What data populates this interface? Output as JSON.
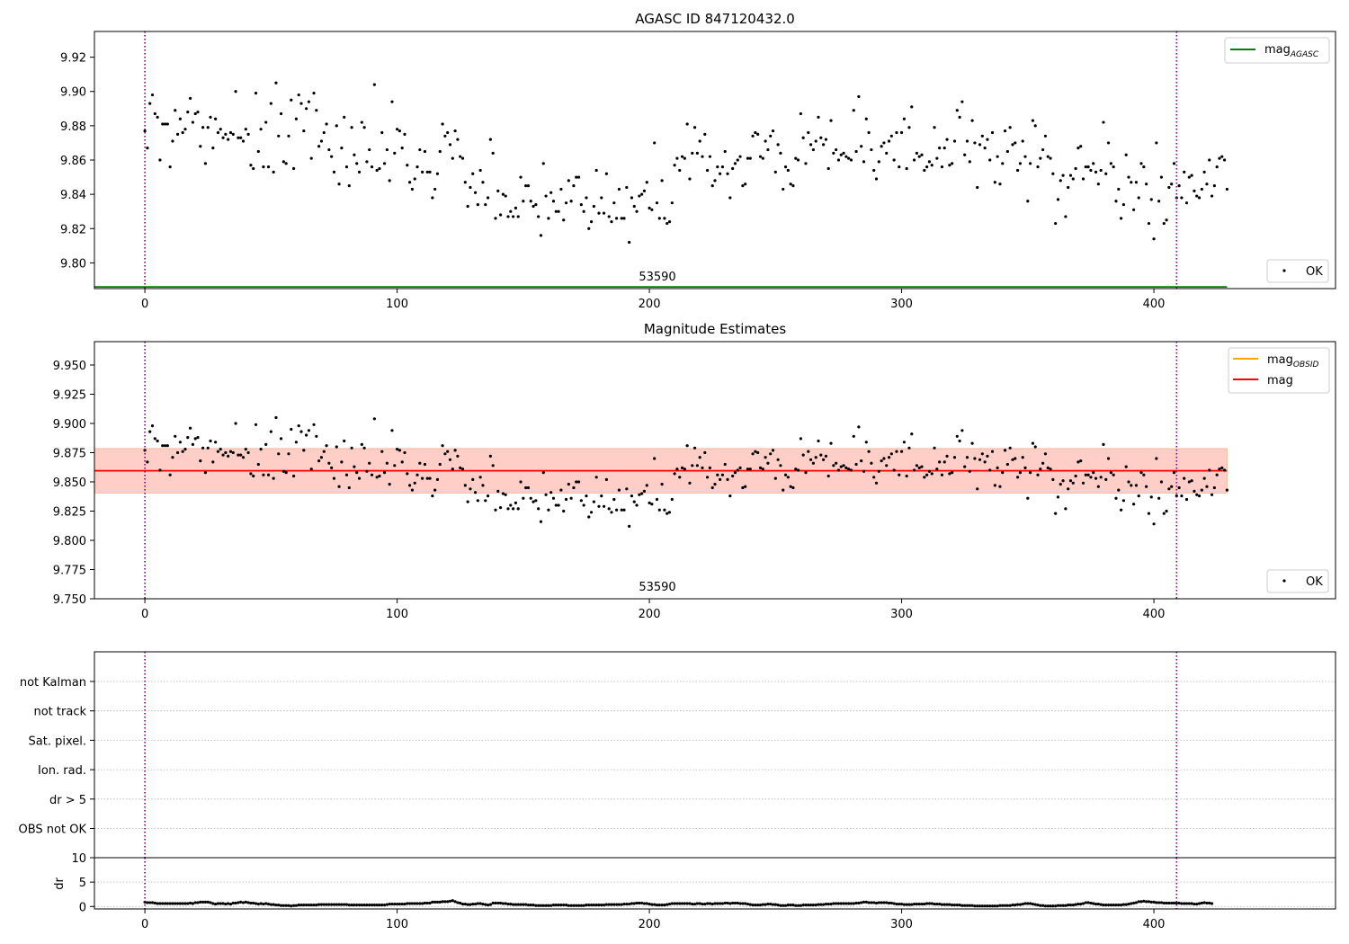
{
  "figure": {
    "panel1_title": "AGASC ID 847120432.0",
    "panel2_title": "Magnitude Estimates",
    "obsid_label": "53590",
    "marker_label": "OK",
    "colors": {
      "mag_agasc": "#008000",
      "mag_obsid": "#ffa500",
      "mag": "#ff0000",
      "band_outer": "#ffc0cb",
      "band_inner": "#ffa07a",
      "boundary": "#800080",
      "points": "#000000"
    }
  },
  "chart_data": [
    {
      "type": "scatter",
      "title": "AGASC ID 847120432.0",
      "xlim": [
        -20,
        472
      ],
      "ylim": [
        9.785,
        9.935
      ],
      "xticks": [
        0,
        100,
        200,
        300,
        400
      ],
      "yticks": [
        9.8,
        9.82,
        9.84,
        9.86,
        9.88,
        9.9,
        9.92
      ],
      "xtick_labels": [
        "0",
        "100",
        "200",
        "300",
        "400"
      ],
      "ytick_labels": [
        "9.80",
        "9.82",
        "9.84",
        "9.86",
        "9.88",
        "9.90",
        "9.92"
      ],
      "series": [
        {
          "name": "OK",
          "kind": "points"
        }
      ],
      "hlines": [
        {
          "name": "mag",
          "sub": "AGASC",
          "value": 9.786,
          "x": [
            -20,
            429
          ]
        }
      ],
      "vlines": [
        0,
        409
      ],
      "legend": "top-right, bottom-right"
    },
    {
      "type": "scatter",
      "title": "Magnitude Estimates",
      "xlim": [
        -20,
        472
      ],
      "ylim": [
        9.75,
        9.97
      ],
      "xticks": [
        0,
        100,
        200,
        300,
        400
      ],
      "yticks": [
        9.75,
        9.775,
        9.8,
        9.825,
        9.85,
        9.875,
        9.9,
        9.925,
        9.95
      ],
      "xtick_labels": [
        "0",
        "100",
        "200",
        "300",
        "400"
      ],
      "ytick_labels": [
        "9.750",
        "9.775",
        "9.800",
        "9.825",
        "9.850",
        "9.875",
        "9.900",
        "9.925",
        "9.950"
      ],
      "series": [
        {
          "name": "OK",
          "kind": "points"
        }
      ],
      "hlines": [
        {
          "name": "mag",
          "sub": "OBSID",
          "value": 9.8595,
          "x": [
            -20,
            429
          ]
        },
        {
          "name": "mag",
          "value": 9.8595,
          "x": [
            -20,
            429
          ]
        }
      ],
      "bands": [
        {
          "from": 9.8405,
          "to": 9.8785,
          "x": [
            -20,
            429
          ],
          "role": "outer"
        },
        {
          "from": 9.8405,
          "to": 9.8785,
          "x": [
            -20,
            429
          ],
          "role": "inner"
        }
      ],
      "vlines": [
        0,
        409
      ],
      "legend": "top-right, bottom-right"
    },
    {
      "type": "table",
      "categories": [
        "not Kalman",
        "not track",
        "Sat. pixel.",
        "Ion. rad.",
        "dr > 5",
        "OBS not OK"
      ],
      "flags": [],
      "xlim": [
        -20,
        472
      ],
      "grid": true,
      "vlines": [
        0,
        409
      ]
    },
    {
      "type": "line",
      "ylabel": "dr",
      "xlim": [
        -20,
        472
      ],
      "ylim": [
        -0.5,
        10
      ],
      "xticks": [
        0,
        100,
        200,
        300,
        400
      ],
      "yticks": [
        0,
        5,
        10
      ],
      "xtick_labels": [
        "0",
        "100",
        "200",
        "300",
        "400"
      ],
      "ytick_labels": [
        "0",
        "5",
        "10"
      ],
      "vlines": [
        0,
        409
      ]
    },
    {
      "type": "scatter",
      "samples": {
        "x_step": 1,
        "mag_ok": [
          9.877,
          9.867,
          9.893,
          9.898,
          9.887,
          9.885,
          9.86,
          9.881,
          9.881,
          9.881,
          9.856,
          9.871,
          9.889,
          9.875,
          9.884,
          9.876,
          9.878,
          9.888,
          9.896,
          9.882,
          9.887,
          9.888,
          9.868,
          9.879,
          9.858,
          9.879,
          9.885,
          9.867,
          9.884,
          9.876,
          9.878,
          9.873,
          9.875,
          9.872,
          9.876,
          9.875,
          9.9,
          9.873,
          9.873,
          9.871,
          9.878,
          9.875,
          9.857,
          9.855,
          9.899,
          9.865,
          9.878,
          9.856,
          9.882,
          9.856,
          9.893,
          9.853,
          9.905,
          9.874,
          9.887,
          9.859,
          9.858,
          9.874,
          9.895,
          9.855,
          9.884,
          9.898,
          9.893,
          9.877,
          9.89,
          9.894,
          9.861,
          9.899,
          9.889,
          9.868,
          9.871,
          9.876,
          9.881,
          9.866,
          9.862,
          9.853,
          9.88,
          9.846,
          9.867,
          9.885,
          9.856,
          9.845,
          9.879,
          9.863,
          9.858,
          9.853,
          9.882,
          9.879,
          9.859,
          9.866,
          9.856,
          9.904,
          9.854,
          9.855,
          9.876,
          9.858,
          9.866,
          9.848,
          9.894,
          9.864,
          9.878,
          9.877,
          9.867,
          9.875,
          9.857,
          9.847,
          9.843,
          9.849,
          9.856,
          9.866,
          9.853,
          9.865,
          9.853,
          9.853,
          9.838,
          9.843,
          9.852,
          9.865,
          9.881,
          9.874,
          9.876,
          9.869,
          9.861,
          9.877,
          9.872,
          9.862,
          9.861,
          9.847,
          9.833,
          9.844,
          9.852,
          9.841,
          9.834,
          9.854,
          9.847,
          9.834,
          9.838,
          9.872,
          9.864,
          9.826,
          9.842,
          9.828,
          9.84,
          9.839,
          9.827,
          9.83,
          9.827,
          9.832,
          9.827,
          9.85,
          9.836,
          9.845,
          9.845,
          9.836,
          9.833,
          9.834,
          9.827,
          9.816,
          9.858,
          9.839,
          9.826,
          9.841,
          9.836,
          9.83,
          9.83,
          9.843,
          9.825,
          9.835,
          9.848,
          9.836,
          9.845,
          9.85,
          9.85,
          9.834,
          9.83,
          9.838,
          9.82,
          9.824,
          9.833,
          9.854,
          9.829,
          9.838,
          9.829,
          9.852,
          9.827,
          9.824,
          9.835,
          9.826,
          9.843,
          9.826,
          9.826,
          9.844,
          9.812,
          9.838,
          9.833,
          9.83,
          9.839,
          9.84,
          9.842,
          9.847,
          9.832,
          9.831,
          9.87,
          9.835,
          9.826,
          9.848,
          9.826,
          9.823,
          9.824,
          9.835,
          9.857,
          9.861,
          9.854,
          9.862,
          9.861,
          9.881,
          9.849,
          9.864,
          9.879,
          9.864,
          9.871,
          9.862,
          9.875,
          9.854,
          9.862,
          9.845,
          9.848,
          9.856,
          9.852,
          9.856,
          9.865,
          9.852,
          9.838,
          9.855,
          9.858,
          9.86,
          9.862,
          9.845,
          9.846,
          9.861,
          9.861,
          9.874,
          9.876,
          9.875,
          9.862,
          9.861,
          9.871,
          9.866,
          9.874,
          9.877,
          9.853,
          9.869,
          9.864,
          9.843,
          9.856,
          9.854,
          9.846,
          9.845,
          9.861,
          9.86,
          9.887,
          9.873,
          9.858,
          9.876,
          9.869,
          9.866,
          9.871,
          9.885,
          9.873,
          9.869,
          9.872,
          9.855,
          9.883,
          9.864,
          9.866,
          9.86,
          9.863,
          9.864,
          9.862,
          9.861,
          9.86,
          9.889,
          9.865,
          9.897,
          9.868,
          9.859,
          9.884,
          9.876,
          9.866,
          9.854,
          9.849,
          9.859,
          9.868,
          9.87,
          9.864,
          9.871,
          9.874,
          9.86,
          9.876,
          9.856,
          9.876,
          9.884,
          9.855,
          9.879,
          9.891,
          9.86,
          9.864,
          9.862,
          9.863,
          9.854,
          9.856,
          9.859,
          9.857,
          9.879,
          9.861,
          9.867,
          9.856,
          9.867,
          9.872,
          9.857,
          9.858,
          9.871,
          9.889,
          9.885,
          9.894,
          9.863,
          9.871,
          9.859,
          9.883,
          9.87,
          9.844,
          9.869,
          9.874,
          9.867,
          9.872,
          9.86,
          9.876,
          9.847,
          9.862,
          9.846,
          9.858,
          9.877,
          9.865,
          9.879,
          9.869,
          9.87,
          9.854,
          9.858,
          9.871,
          9.862,
          9.836,
          9.858,
          9.883,
          9.88,
          9.856,
          9.861,
          9.866,
          9.874,
          9.862,
          9.861,
          9.852,
          9.823,
          9.837,
          9.848,
          9.851,
          9.827,
          9.844,
          9.851,
          9.849,
          9.855,
          9.867,
          9.868,
          9.849,
          9.856,
          9.856,
          9.854,
          9.858,
          9.853,
          9.846,
          9.854,
          9.882,
          9.852,
          9.87,
          9.858,
          9.856,
          9.836,
          9.843,
          9.826,
          9.834,
          9.863,
          9.85,
          9.847,
          9.831,
          9.847,
          9.838,
          9.858,
          9.856,
          9.846,
          9.823,
          9.837,
          9.814,
          9.87,
          9.836,
          9.85,
          9.823,
          9.825,
          9.844,
          9.846,
          9.858,
          9.838,
          9.845,
          9.838,
          9.853,
          9.835,
          9.85,
          9.851,
          9.842,
          9.839,
          9.838,
          9.843,
          9.853,
          9.846,
          9.86,
          9.839,
          9.845,
          9.856,
          9.861,
          9.862,
          9.86,
          9.843
        ],
        "dr_ok": [
          0.9,
          0.8,
          0.8,
          0.8,
          0.7,
          0.6,
          0.6,
          0.6,
          0.6,
          0.6,
          0.6,
          0.6,
          0.6,
          0.6,
          0.6,
          0.6,
          0.6,
          0.6,
          0.7,
          0.6,
          0.8,
          0.8,
          0.9,
          0.9,
          0.9,
          0.9,
          0.8,
          0.6,
          0.5,
          0.6,
          0.6,
          0.6,
          0.5,
          0.6,
          0.5,
          0.7,
          0.7,
          0.8,
          0.9,
          0.8,
          0.9,
          0.8,
          0.7,
          0.7,
          0.6,
          0.5,
          0.6,
          0.5,
          0.6,
          0.5,
          0.4,
          0.4,
          0.3,
          0.3,
          0.2,
          0.2,
          0.2,
          0.2,
          0.1,
          0.2,
          0.2,
          0.3,
          0.3,
          0.3,
          0.3,
          0.3,
          0.3,
          0.3,
          0.3,
          0.4,
          0.4,
          0.4,
          0.4,
          0.4,
          0.4,
          0.4,
          0.4,
          0.4,
          0.4,
          0.4,
          0.4,
          0.3,
          0.3,
          0.3,
          0.3,
          0.3,
          0.3,
          0.3,
          0.3,
          0.3,
          0.3,
          0.3,
          0.3,
          0.3,
          0.3,
          0.3,
          0.4,
          0.5,
          0.5,
          0.5,
          0.5,
          0.5,
          0.5,
          0.5,
          0.6,
          0.6,
          0.6,
          0.6,
          0.6,
          0.6,
          0.6,
          0.7,
          0.7,
          0.7,
          0.9,
          0.9,
          0.9,
          0.9,
          1,
          1,
          1,
          1.1,
          1.2,
          1,
          0.8,
          0.7,
          0.5,
          0.5,
          0.4,
          0.4,
          0.5,
          0.5,
          0.6,
          0.6,
          0.5,
          0.4,
          0.3,
          0.4,
          0.7,
          0.7,
          0.7,
          0.7,
          0.6,
          0.6,
          0.5,
          0.5,
          0.4,
          0.4,
          0.4,
          0.4,
          0.4,
          0.4,
          0.3,
          0.3,
          0.3,
          0.2,
          0.2,
          0.2,
          0.2,
          0.2,
          0.2,
          0.2,
          0.3,
          0.3,
          0.3,
          0.3,
          0.3,
          0.3,
          0.2,
          0.2,
          0.2,
          0.2,
          0.2,
          0.2,
          0.2,
          0.3,
          0.3,
          0.3,
          0.3,
          0.3,
          0.3,
          0.3,
          0.3,
          0.4,
          0.4,
          0.4,
          0.4,
          0.4,
          0.4,
          0.4,
          0.5,
          0.5,
          0.5,
          0.6,
          0.6,
          0.7,
          0.7,
          0.7,
          0.6,
          0.6,
          0.5,
          0.4,
          0.4,
          0.3,
          0.3,
          0.3,
          0.3,
          0.4,
          0.5,
          0.6,
          0.6,
          0.6,
          0.6,
          0.6,
          0.6,
          0.6,
          0.6,
          0.5,
          0.5,
          0.6,
          0.6,
          0.5,
          0.5,
          0.6,
          0.6,
          0.5,
          0.6,
          0.6,
          0.6,
          0.6,
          0.7,
          0.7,
          0.6,
          0.7,
          0.7,
          0.7,
          0.6,
          0.6,
          0.6,
          0.5,
          0.4,
          0.3,
          0.3,
          0.3,
          0.3,
          0.4,
          0.4,
          0.5,
          0.5,
          0.4,
          0.4,
          0.3,
          0.2,
          0.2,
          0.2,
          0.3,
          0.3,
          0.3,
          0.2,
          0.2,
          0.2,
          0.3,
          0.3,
          0.3,
          0.3,
          0.3,
          0.3,
          0.4,
          0.4,
          0.4,
          0.5,
          0.5,
          0.5,
          0.6,
          0.6,
          0.6,
          0.6,
          0.6,
          0.6,
          0.6,
          0.6,
          0.6,
          0.7,
          0.7,
          0.8,
          0.9,
          0.9,
          0.8,
          0.8,
          0.8,
          0.7,
          0.8,
          0.8,
          0.8,
          0.8,
          0.7,
          0.7,
          0.6,
          0.5,
          0.5,
          0.5,
          0.4,
          0.4,
          0.4,
          0.4,
          0.5,
          0.5,
          0.5,
          0.5,
          0.5,
          0.6,
          0.6,
          0.6,
          0.5,
          0.5,
          0.5,
          0.4,
          0.4,
          0.4,
          0.4,
          0.3,
          0.3,
          0.3,
          0.3,
          0.2,
          0.2,
          0.2,
          0.2,
          0.2,
          0.1,
          0.1,
          0.1,
          0.1,
          0.1,
          0.1,
          0.1,
          0.1,
          0.1,
          0.1,
          0.2,
          0.2,
          0.2,
          0.2,
          0.2,
          0.3,
          0.3,
          0.4,
          0.4,
          0.5,
          0.6,
          0.6,
          0.6,
          0.5,
          0.4,
          0.3,
          0.2,
          0.2,
          0.1,
          0.1,
          0.1,
          0.1,
          0.1,
          0.2,
          0.2,
          0.2,
          0.2,
          0.3,
          0.3,
          0.3,
          0.4,
          0.5,
          0.5,
          0.6,
          0.8,
          0.8,
          0.7,
          0.6,
          0.5,
          0.5,
          0.4,
          0.3,
          0.3,
          0.3,
          0.3,
          0.3,
          0.3,
          0.3,
          0.3,
          0.4,
          0.4,
          0.5,
          0.6,
          0.7,
          0.8,
          1,
          1,
          1.1,
          1,
          1,
          0.9,
          0.9,
          0.8,
          0.8,
          0.8,
          0.7,
          0.7,
          0.7,
          0.7,
          0.7,
          0.7,
          0.7,
          0.6,
          0.6,
          0.6,
          0.6,
          0.6,
          0.5,
          0.5,
          0.6,
          0.7,
          0.8,
          0.7,
          0.7,
          0.6
        ]
      }
    }
  ]
}
